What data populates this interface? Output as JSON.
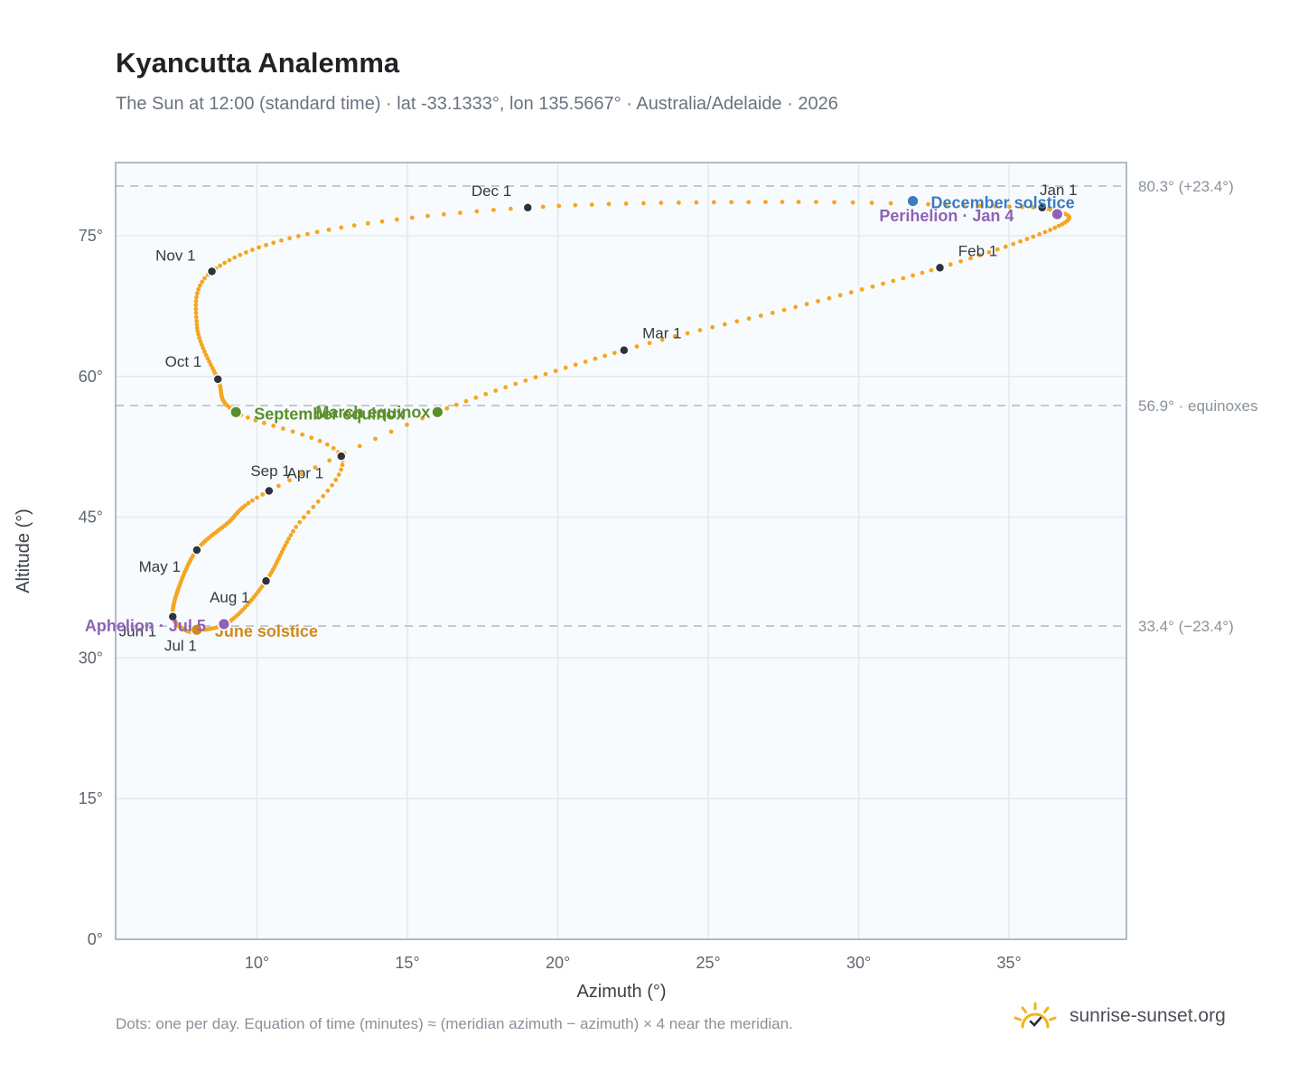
{
  "title": "Kyancutta Analemma",
  "subtitle": "The Sun at 12:00 (standard time) · lat -33.1333°, lon 135.5667° · Australia/Adelaide · 2026",
  "footnote": "Dots: one per day. Equation of time (minutes) ≈ (meridian azimuth − azimuth) × 4 near the meridian.",
  "brand": {
    "name": "sunrise-sunset.org",
    "logo_icon": "sun-check-icon"
  },
  "colors": {
    "path": "#f5a623",
    "month_dot": "#2d333b",
    "equinox": "#5b8f2d",
    "june_solstice": "#d08a1a",
    "december_solstice": "#3b7bbf",
    "apsis": "#8e63b5",
    "plot_bg": "#f8fbfd",
    "grid": "#e3e9ef",
    "frame": "#9aa5b1",
    "ref_line": "#b7c3cd"
  },
  "chart_data": {
    "type": "scatter",
    "title": "Kyancutta Analemma",
    "xlabel": "Azimuth (°)",
    "ylabel": "Altitude (°)",
    "xlim": [
      5.3,
      38.9
    ],
    "ylim": [
      0,
      82.8
    ],
    "x_ticks": [
      10,
      15,
      20,
      25,
      30,
      35
    ],
    "x_tick_labels": [
      "10°",
      "15°",
      "20°",
      "25°",
      "30°",
      "35°"
    ],
    "y_ticks": [
      0,
      15,
      30,
      45,
      60,
      75
    ],
    "y_tick_labels": [
      "0°",
      "15°",
      "30°",
      "45°",
      "60°",
      "75°"
    ],
    "grid": true,
    "reference_lines": [
      {
        "y": 80.3,
        "label": "80.3° (+23.4°)"
      },
      {
        "y": 56.9,
        "label": "56.9° · equinoxes"
      },
      {
        "y": 33.4,
        "label": "33.4° (−23.4°)"
      }
    ],
    "month_markers": [
      {
        "label": "Jan 1",
        "x": 36.1,
        "y": 78.0
      },
      {
        "label": "Feb 1",
        "x": 32.7,
        "y": 71.6
      },
      {
        "label": "Mar 1",
        "x": 22.2,
        "y": 62.8
      },
      {
        "label": "Apr 1",
        "x": 10.4,
        "y": 47.8
      },
      {
        "label": "May 1",
        "x": 8.0,
        "y": 41.5
      },
      {
        "label": "Jun 1",
        "x": 7.2,
        "y": 34.4
      },
      {
        "label": "Jul 1",
        "x": 8.0,
        "y": 32.9
      },
      {
        "label": "Aug 1",
        "x": 10.3,
        "y": 38.2
      },
      {
        "label": "Sep 1",
        "x": 12.8,
        "y": 51.5
      },
      {
        "label": "Oct 1",
        "x": 8.7,
        "y": 59.7
      },
      {
        "label": "Nov 1",
        "x": 8.5,
        "y": 71.2
      },
      {
        "label": "Dec 1",
        "x": 19.0,
        "y": 78.0
      }
    ],
    "events": [
      {
        "label": "March equinox",
        "x": 16.0,
        "y": 56.2
      },
      {
        "label": "September equinox",
        "x": 9.3,
        "y": 56.2
      },
      {
        "label": "June solstice",
        "x": 8.0,
        "y": 33.0
      },
      {
        "label": "December solstice",
        "x": 31.8,
        "y": 78.7
      },
      {
        "label": "Perihelion · Jan 4",
        "x": 36.6,
        "y": 77.3
      },
      {
        "label": "Aphelion · Jul 5",
        "x": 8.9,
        "y": 33.6
      }
    ],
    "path_knots": [
      {
        "day": 0,
        "x": 36.1,
        "y": 78.0
      },
      {
        "day": 10,
        "x": 37.0,
        "y": 76.9
      },
      {
        "day": 20,
        "x": 35.8,
        "y": 74.9
      },
      {
        "day": 31,
        "x": 32.7,
        "y": 71.6
      },
      {
        "day": 45,
        "x": 27.9,
        "y": 67.4
      },
      {
        "day": 59,
        "x": 22.2,
        "y": 62.8
      },
      {
        "day": 78,
        "x": 16.0,
        "y": 56.2
      },
      {
        "day": 90,
        "x": 10.4,
        "y": 47.8
      },
      {
        "day": 105,
        "x": 9.0,
        "y": 44.3
      },
      {
        "day": 120,
        "x": 8.0,
        "y": 41.5
      },
      {
        "day": 135,
        "x": 7.4,
        "y": 37.5
      },
      {
        "day": 151,
        "x": 7.2,
        "y": 34.4
      },
      {
        "day": 165,
        "x": 7.6,
        "y": 33.0
      },
      {
        "day": 181,
        "x": 8.0,
        "y": 32.9
      },
      {
        "day": 195,
        "x": 9.1,
        "y": 33.9
      },
      {
        "day": 212,
        "x": 10.3,
        "y": 38.2
      },
      {
        "day": 228,
        "x": 11.2,
        "y": 43.5
      },
      {
        "day": 243,
        "x": 12.8,
        "y": 51.5
      },
      {
        "day": 257,
        "x": 9.3,
        "y": 56.2
      },
      {
        "day": 273,
        "x": 8.7,
        "y": 59.7
      },
      {
        "day": 290,
        "x": 8.0,
        "y": 65.5
      },
      {
        "day": 304,
        "x": 8.5,
        "y": 71.2
      },
      {
        "day": 320,
        "x": 12.0,
        "y": 75.4
      },
      {
        "day": 334,
        "x": 19.0,
        "y": 78.0
      },
      {
        "day": 350,
        "x": 28.0,
        "y": 78.6
      },
      {
        "day": 365,
        "x": 36.1,
        "y": 78.0
      }
    ]
  }
}
